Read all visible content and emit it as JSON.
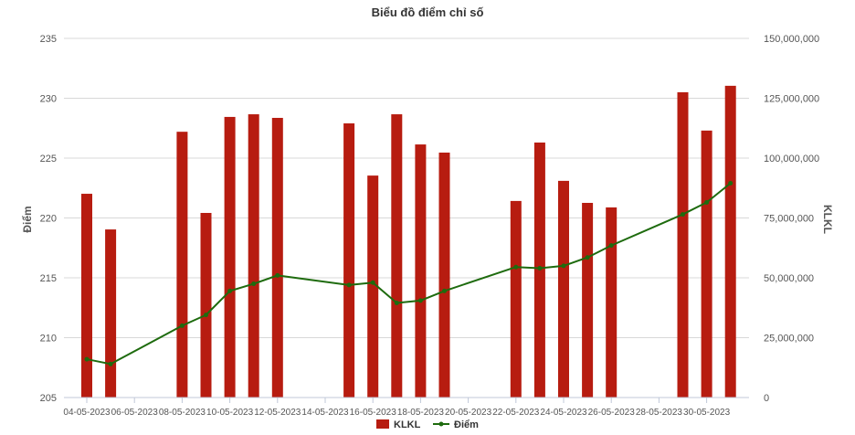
{
  "chart_data": {
    "type": "bar+line",
    "title": "Biểu đồ điểm chỉ số",
    "ylabel_left": "Điểm",
    "ylabel_right": "KLKL",
    "ylim_left": [
      205,
      235
    ],
    "yticks_left": [
      "205",
      "210",
      "215",
      "220",
      "225",
      "230",
      "235"
    ],
    "ylim_right": [
      0,
      150000000
    ],
    "yticks_right": [
      "0",
      "25,000,000",
      "50,000,000",
      "75,000,000",
      "100,000,000",
      "125,000,000",
      "150,000,000"
    ],
    "xtick_labels": [
      "04-05-2023",
      "06-05-2023",
      "08-05-2023",
      "10-05-2023",
      "12-05-2023",
      "14-05-2023",
      "16-05-2023",
      "18-05-2023",
      "20-05-2023",
      "22-05-2023",
      "24-05-2023",
      "26-05-2023",
      "28-05-2023",
      "30-05-2023"
    ],
    "grid": true,
    "legend_position": "bottom",
    "x": [
      "04-05-2023",
      "05-05-2023",
      "08-05-2023",
      "09-05-2023",
      "10-05-2023",
      "11-05-2023",
      "12-05-2023",
      "15-05-2023",
      "16-05-2023",
      "17-05-2023",
      "18-05-2023",
      "19-05-2023",
      "22-05-2023",
      "23-05-2023",
      "24-05-2023",
      "25-05-2023",
      "26-05-2023",
      "29-05-2023",
      "30-05-2023",
      "31-05-2023"
    ],
    "series": [
      {
        "name": "KLKL",
        "type": "bar",
        "axis": "right",
        "color": "#b71c10",
        "values": [
          85100000,
          70200000,
          111000000,
          77100000,
          117200000,
          118300000,
          116800000,
          114500000,
          92700000,
          118300000,
          105700000,
          102300000,
          82100000,
          106500000,
          90500000,
          81300000,
          79400000,
          127500000,
          111500000,
          130200000
        ]
      },
      {
        "name": "Điểm",
        "type": "line",
        "axis": "left",
        "color": "#1e6b0e",
        "values": [
          208.2,
          207.8,
          211.0,
          211.9,
          213.9,
          214.5,
          215.2,
          214.4,
          214.6,
          212.9,
          213.1,
          213.9,
          215.9,
          215.8,
          216.0,
          216.7,
          217.7,
          220.3,
          221.3,
          222.9
        ]
      }
    ]
  }
}
